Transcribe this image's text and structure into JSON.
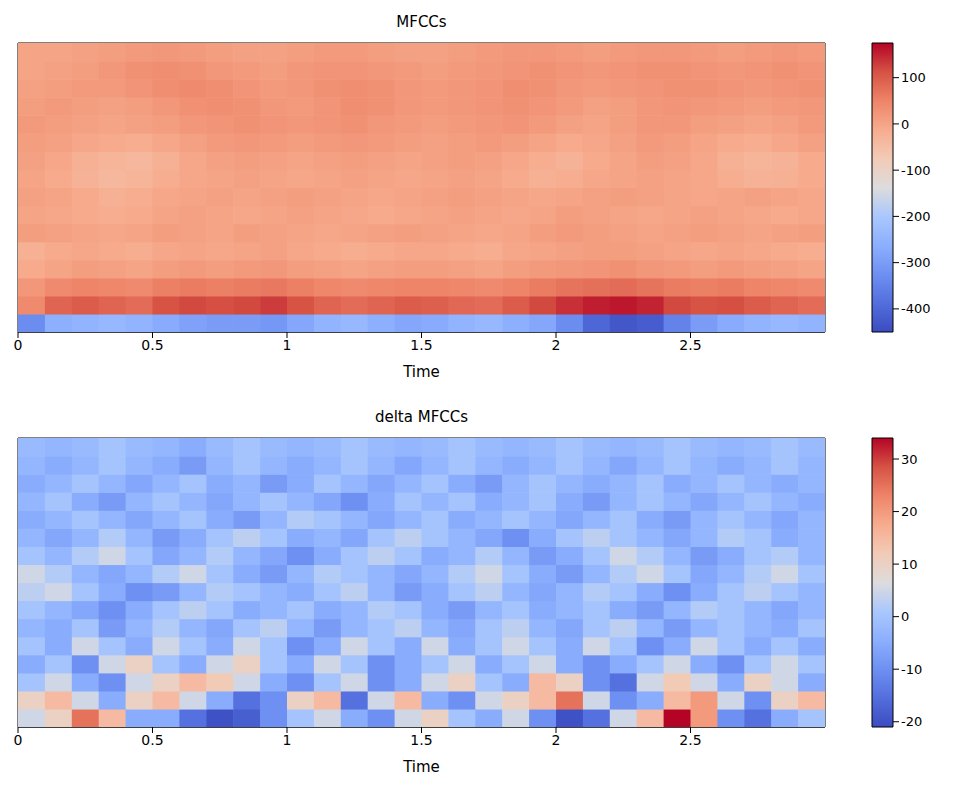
{
  "chart_data": [
    {
      "type": "heatmap",
      "title": "MFCCs",
      "x_label": "Time",
      "xlim": [
        0,
        3
      ],
      "xticks": [
        0,
        0.5,
        1,
        1.5,
        2,
        2.5
      ],
      "ylim": [
        0,
        16
      ],
      "tick_labels": "x",
      "x": [
        0.05,
        0.15,
        0.25,
        0.35,
        0.45,
        0.55,
        0.65,
        0.75,
        0.85,
        0.95,
        1.05,
        1.15,
        1.25,
        1.35,
        1.45,
        1.55,
        1.65,
        1.75,
        1.85,
        1.95,
        2.05,
        2.15,
        2.25,
        2.35,
        2.45,
        2.55,
        2.65,
        2.75,
        2.85,
        2.95
      ],
      "y": [
        0.5,
        1.5,
        2.5,
        3.5,
        4.5,
        5.5,
        6.5,
        7.5,
        8.5,
        9.5,
        10.5,
        11.5,
        12.5,
        13.5,
        14.5,
        15.5
      ],
      "cells": [
        [
          -330,
          -260,
          -250,
          -240,
          -250,
          -270,
          -290,
          -300,
          -300,
          -310,
          -280,
          -250,
          -240,
          -260,
          -280,
          -270,
          -250,
          -240,
          -260,
          -280,
          -330,
          -400,
          -430,
          -420,
          -350,
          -300,
          -270,
          -250,
          -240,
          -250
        ],
        [
          40,
          90,
          100,
          90,
          80,
          110,
          120,
          115,
          120,
          130,
          110,
          90,
          80,
          90,
          100,
          95,
          85,
          80,
          100,
          120,
          140,
          155,
          160,
          150,
          120,
          110,
          115,
          100,
          90,
          80
        ],
        [
          20,
          40,
          50,
          45,
          40,
          55,
          60,
          55,
          60,
          65,
          55,
          45,
          40,
          45,
          50,
          50,
          45,
          40,
          50,
          60,
          70,
          75,
          80,
          70,
          60,
          55,
          60,
          50,
          45,
          40
        ],
        [
          -10,
          0,
          10,
          5,
          0,
          10,
          15,
          10,
          15,
          20,
          10,
          5,
          0,
          5,
          10,
          10,
          5,
          0,
          10,
          15,
          20,
          25,
          30,
          20,
          15,
          10,
          15,
          10,
          5,
          0
        ],
        [
          -20,
          -10,
          -5,
          -10,
          -15,
          -5,
          0,
          -5,
          0,
          5,
          -5,
          -10,
          -15,
          -10,
          -5,
          -5,
          -10,
          -15,
          -5,
          0,
          5,
          10,
          10,
          5,
          0,
          -5,
          0,
          -5,
          -10,
          -15
        ],
        [
          10,
          5,
          0,
          -5,
          0,
          10,
          5,
          0,
          10,
          5,
          0,
          -5,
          0,
          5,
          10,
          5,
          0,
          -5,
          0,
          10,
          15,
          10,
          5,
          0,
          5,
          10,
          5,
          0,
          5,
          10
        ],
        [
          0,
          -5,
          -10,
          -15,
          -10,
          0,
          5,
          0,
          -5,
          0,
          5,
          0,
          -5,
          -10,
          -5,
          0,
          5,
          0,
          -5,
          0,
          10,
          5,
          0,
          -5,
          0,
          5,
          0,
          -5,
          -10,
          -5
        ],
        [
          5,
          0,
          -10,
          -20,
          -15,
          -5,
          0,
          5,
          0,
          5,
          10,
          5,
          0,
          -5,
          0,
          5,
          10,
          5,
          0,
          -5,
          0,
          5,
          10,
          5,
          0,
          -5,
          0,
          5,
          0,
          -5
        ],
        [
          0,
          -10,
          -25,
          -35,
          -30,
          -15,
          -5,
          0,
          5,
          0,
          -5,
          0,
          5,
          0,
          -5,
          0,
          5,
          0,
          -10,
          -20,
          -15,
          -5,
          0,
          5,
          0,
          -5,
          -15,
          -25,
          -20,
          -10
        ],
        [
          5,
          -5,
          -20,
          -30,
          -35,
          -20,
          -5,
          5,
          10,
          5,
          0,
          5,
          10,
          5,
          0,
          5,
          10,
          5,
          -5,
          -15,
          -25,
          -10,
          0,
          10,
          5,
          -5,
          -20,
          -30,
          -25,
          -10
        ],
        [
          10,
          5,
          -5,
          -10,
          -15,
          -5,
          5,
          15,
          20,
          15,
          10,
          15,
          20,
          15,
          10,
          5,
          10,
          15,
          10,
          0,
          -10,
          -5,
          5,
          15,
          10,
          0,
          -10,
          -15,
          -5,
          5
        ],
        [
          15,
          10,
          5,
          0,
          5,
          10,
          20,
          25,
          30,
          25,
          20,
          25,
          30,
          20,
          15,
          10,
          15,
          20,
          25,
          15,
          5,
          0,
          10,
          20,
          20,
          10,
          5,
          0,
          5,
          15
        ],
        [
          10,
          15,
          10,
          5,
          10,
          20,
          30,
          35,
          30,
          20,
          15,
          25,
          35,
          30,
          20,
          15,
          20,
          25,
          30,
          25,
          15,
          5,
          10,
          20,
          25,
          20,
          15,
          10,
          15,
          20
        ],
        [
          5,
          10,
          15,
          15,
          25,
          35,
          40,
          35,
          25,
          15,
          20,
          30,
          35,
          30,
          20,
          15,
          20,
          25,
          35,
          30,
          20,
          15,
          20,
          25,
          30,
          30,
          25,
          20,
          25,
          30
        ],
        [
          0,
          5,
          10,
          20,
          30,
          35,
          30,
          20,
          15,
          10,
          20,
          25,
          25,
          20,
          15,
          10,
          15,
          20,
          25,
          30,
          25,
          20,
          25,
          30,
          30,
          25,
          20,
          25,
          30,
          25
        ],
        [
          0,
          0,
          5,
          10,
          15,
          20,
          15,
          10,
          5,
          5,
          10,
          15,
          15,
          10,
          5,
          5,
          10,
          15,
          20,
          20,
          15,
          10,
          15,
          20,
          20,
          15,
          10,
          15,
          20,
          15
        ]
      ],
      "colorbar_range": [
        -450,
        175
      ],
      "colorbar_ticks": [
        -400,
        -300,
        -200,
        -100,
        0,
        100
      ]
    },
    {
      "type": "heatmap",
      "title": "delta MFCCs",
      "x_label": "Time",
      "xlim": [
        0,
        3
      ],
      "xticks": [
        0,
        0.5,
        1,
        1.5,
        2,
        2.5
      ],
      "ylim": [
        0,
        16
      ],
      "tick_labels": "x",
      "x": [
        0.05,
        0.15,
        0.25,
        0.35,
        0.45,
        0.55,
        0.65,
        0.75,
        0.85,
        0.95,
        1.05,
        1.15,
        1.25,
        1.35,
        1.45,
        1.55,
        1.65,
        1.75,
        1.85,
        1.95,
        2.05,
        2.15,
        2.25,
        2.35,
        2.45,
        2.55,
        2.65,
        2.75,
        2.85,
        2.95
      ],
      "y": [
        0.5,
        1.5,
        2.5,
        3.5,
        4.5,
        5.5,
        6.5,
        7.5,
        8.5,
        9.5,
        10.5,
        11.5,
        12.5,
        13.5,
        14.5,
        15.5
      ],
      "cells": [
        [
          5,
          10,
          25,
          15,
          -5,
          -5,
          -15,
          -20,
          -18,
          -10,
          0,
          5,
          -5,
          -10,
          5,
          10,
          0,
          -5,
          5,
          -10,
          -20,
          -15,
          5,
          15,
          34,
          20,
          -10,
          -15,
          -5,
          0
        ],
        [
          10,
          15,
          5,
          -5,
          10,
          15,
          5,
          -5,
          -15,
          -10,
          10,
          15,
          -15,
          5,
          15,
          -5,
          -10,
          5,
          10,
          15,
          25,
          5,
          -10,
          -5,
          15,
          20,
          5,
          -10,
          10,
          15
        ],
        [
          0,
          5,
          -5,
          -10,
          5,
          10,
          15,
          12,
          5,
          -5,
          -10,
          0,
          5,
          -10,
          -5,
          5,
          10,
          0,
          -5,
          15,
          10,
          -10,
          -15,
          5,
          12,
          5,
          -5,
          10,
          5,
          -5
        ],
        [
          -5,
          0,
          -10,
          5,
          10,
          0,
          -5,
          5,
          10,
          0,
          -5,
          5,
          0,
          -10,
          -5,
          0,
          5,
          -5,
          0,
          5,
          -5,
          -10,
          -5,
          0,
          5,
          -5,
          -10,
          0,
          5,
          0
        ],
        [
          0,
          -5,
          5,
          0,
          -5,
          5,
          0,
          -5,
          5,
          0,
          -10,
          -5,
          5,
          0,
          -5,
          5,
          -5,
          0,
          5,
          0,
          -5,
          5,
          0,
          -10,
          -5,
          5,
          0,
          -5,
          0,
          -5
        ],
        [
          -3,
          -5,
          0,
          -8,
          -3,
          2,
          -3,
          -6,
          0,
          3,
          -3,
          -8,
          -3,
          0,
          3,
          -3,
          -6,
          0,
          3,
          -3,
          -6,
          0,
          3,
          -3,
          -8,
          -3,
          0,
          -3,
          -5,
          0
        ],
        [
          0,
          -3,
          -6,
          -10,
          -5,
          0,
          3,
          0,
          -5,
          -3,
          0,
          -5,
          -3,
          2,
          0,
          -5,
          -8,
          -3,
          0,
          -5,
          -3,
          0,
          -5,
          -8,
          -3,
          2,
          0,
          -3,
          -6,
          -3
        ],
        [
          3,
          5,
          0,
          -5,
          -10,
          -8,
          -3,
          2,
          0,
          -3,
          -5,
          0,
          3,
          -3,
          -8,
          -5,
          0,
          3,
          -3,
          -6,
          -3,
          2,
          0,
          -5,
          -10,
          -5,
          0,
          3,
          0,
          -3
        ],
        [
          5,
          2,
          -3,
          -6,
          -3,
          2,
          5,
          0,
          -5,
          -8,
          -3,
          2,
          0,
          -3,
          -6,
          -3,
          2,
          5,
          0,
          -5,
          -8,
          -3,
          2,
          5,
          0,
          -6,
          -3,
          2,
          5,
          0
        ],
        [
          0,
          -3,
          2,
          5,
          0,
          -6,
          -3,
          2,
          -3,
          -6,
          -10,
          -5,
          0,
          3,
          0,
          -5,
          -3,
          2,
          -3,
          -8,
          -5,
          0,
          5,
          2,
          -3,
          -8,
          -5,
          0,
          2,
          -3
        ],
        [
          -3,
          -6,
          -3,
          2,
          -3,
          -8,
          -5,
          0,
          3,
          0,
          -5,
          -3,
          -6,
          0,
          3,
          0,
          -3,
          -6,
          -10,
          -5,
          0,
          3,
          0,
          -3,
          -6,
          -3,
          2,
          0,
          -5,
          -3
        ],
        [
          -5,
          -3,
          0,
          -3,
          -6,
          -3,
          0,
          -5,
          -8,
          -3,
          2,
          0,
          -3,
          -6,
          -3,
          0,
          -5,
          -3,
          0,
          -3,
          -6,
          -3,
          0,
          -5,
          -8,
          -3,
          0,
          -3,
          -6,
          -3
        ],
        [
          -3,
          0,
          -5,
          -8,
          -3,
          0,
          -3,
          -6,
          -3,
          0,
          -3,
          -6,
          -10,
          -5,
          0,
          -3,
          0,
          -5,
          -3,
          0,
          -5,
          -8,
          -3,
          0,
          -3,
          -6,
          -3,
          0,
          -3,
          -5
        ],
        [
          -5,
          -3,
          0,
          -3,
          -6,
          -3,
          0,
          -5,
          -3,
          -8,
          -5,
          0,
          -3,
          -6,
          -3,
          0,
          -5,
          -8,
          -3,
          0,
          -3,
          -5,
          -3,
          0,
          -5,
          -3,
          0,
          -3,
          -5,
          -3
        ],
        [
          -3,
          -5,
          -3,
          0,
          -3,
          -5,
          -8,
          -3,
          0,
          -3,
          -5,
          -3,
          0,
          -3,
          -6,
          -3,
          0,
          -3,
          -5,
          -3,
          0,
          -3,
          -6,
          -3,
          0,
          -3,
          -5,
          -3,
          0,
          -3
        ],
        [
          -2,
          -3,
          -2,
          0,
          -2,
          -3,
          -5,
          -2,
          0,
          -2,
          -3,
          -2,
          0,
          -2,
          -3,
          -2,
          0,
          -2,
          -3,
          -2,
          0,
          -2,
          -3,
          -2,
          0,
          -2,
          -3,
          -2,
          0,
          -2
        ]
      ],
      "colorbar_range": [
        -21,
        34
      ],
      "colorbar_ticks": [
        -20,
        -10,
        0,
        10,
        20,
        30
      ]
    }
  ]
}
